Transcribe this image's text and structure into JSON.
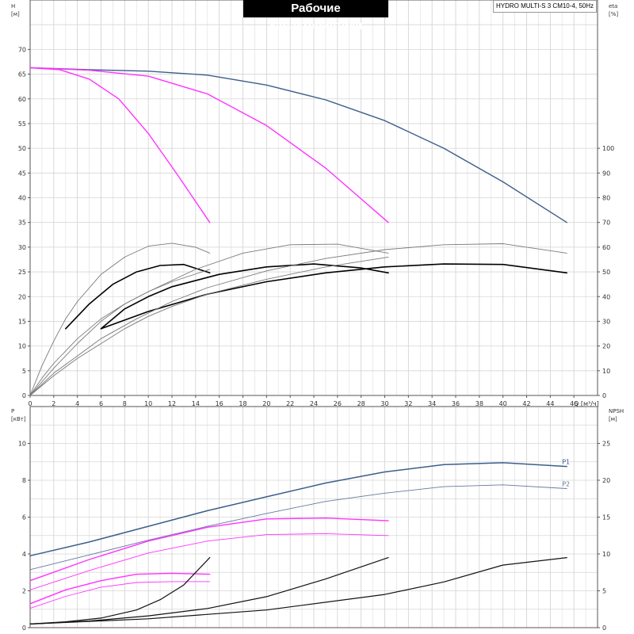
{
  "header": {
    "title": "Рабочие характеристики",
    "model": "HYDRO MULTI-S 3 CM10-4, 50Hz"
  },
  "chart_data": [
    {
      "type": "line",
      "panel": "top",
      "xlabel": "Q [м³/ч]",
      "ylabel_left": "H\n[м]",
      "ylabel_right": "eta\n[%]",
      "xlim": [
        0,
        48
      ],
      "ylim_left": [
        0,
        80
      ],
      "ylim_right": [
        0,
        160
      ],
      "xticks": [
        0,
        2,
        4,
        6,
        8,
        10,
        12,
        14,
        16,
        18,
        20,
        22,
        24,
        26,
        28,
        30,
        32,
        34,
        36,
        38,
        40,
        42,
        44,
        46
      ],
      "yticks_left": [
        0,
        5,
        10,
        15,
        20,
        25,
        30,
        35,
        40,
        45,
        50,
        55,
        60,
        65,
        70
      ],
      "yticks_right": [
        0,
        10,
        20,
        30,
        40,
        50,
        60,
        70,
        80,
        90,
        100
      ],
      "grid": true,
      "series": [
        {
          "kind": "H",
          "axis": "left",
          "color": "#3b5e8a",
          "width": 1.4,
          "x": [
            0,
            5,
            10,
            15,
            20,
            25,
            30,
            35,
            40,
            45.4
          ],
          "y": [
            66.3,
            65.9,
            65.6,
            64.8,
            62.8,
            59.8,
            55.6,
            50.0,
            43.2,
            35.0
          ]
        },
        {
          "kind": "H",
          "axis": "left",
          "color": "#ff33ff",
          "width": 1.4,
          "x": [
            0,
            5,
            10,
            15,
            20,
            25,
            30.3
          ],
          "y": [
            66.3,
            65.8,
            64.6,
            61.0,
            54.6,
            46.0,
            35.0
          ]
        },
        {
          "kind": "H",
          "axis": "left",
          "color": "#ff33ff",
          "width": 1.4,
          "x": [
            0,
            2.5,
            5,
            7.5,
            10,
            12.5,
            15.2
          ],
          "y": [
            66.3,
            65.9,
            64.0,
            60.0,
            53.0,
            44.5,
            35.0
          ]
        },
        {
          "kind": "eta_total",
          "axis": "left",
          "color": "#000000",
          "width": 1.6,
          "x": [
            6,
            10,
            15,
            20,
            25,
            30,
            35,
            40,
            45.4
          ],
          "y": [
            13.5,
            17.0,
            20.5,
            23.0,
            24.8,
            26.0,
            26.6,
            26.5,
            24.8
          ]
        },
        {
          "kind": "eta_total",
          "axis": "left",
          "color": "#000000",
          "width": 1.6,
          "x": [
            6,
            8,
            10,
            12,
            16,
            20,
            24,
            28,
            30.3
          ],
          "y": [
            13.5,
            17.5,
            20.0,
            22.0,
            24.5,
            26.0,
            26.6,
            25.8,
            24.8
          ]
        },
        {
          "kind": "eta_total",
          "axis": "left",
          "color": "#000000",
          "width": 1.6,
          "x": [
            3,
            5,
            7,
            9,
            11,
            13,
            15.2
          ],
          "y": [
            13.5,
            18.5,
            22.5,
            25.0,
            26.3,
            26.5,
            24.8
          ]
        },
        {
          "kind": "eta_pump",
          "axis": "left",
          "color": "#7a7a7a",
          "width": 0.9,
          "x": [
            0,
            2,
            4,
            6,
            9,
            12,
            15,
            20,
            25,
            30,
            35,
            40,
            45.4
          ],
          "y": [
            0,
            4.5,
            8.0,
            11.5,
            15.5,
            19.0,
            21.8,
            25.2,
            27.7,
            29.5,
            30.5,
            30.7,
            28.8
          ]
        },
        {
          "kind": "eta_pump",
          "axis": "left",
          "color": "#7a7a7a",
          "width": 0.9,
          "x": [
            0,
            2,
            4,
            6,
            8,
            10,
            14,
            18,
            22,
            26,
            30.3
          ],
          "y": [
            0,
            5.5,
            10.5,
            15.0,
            18.5,
            21.0,
            25.5,
            28.8,
            30.5,
            30.6,
            28.8
          ]
        },
        {
          "kind": "eta_pump",
          "axis": "left",
          "color": "#7a7a7a",
          "width": 0.9,
          "x": [
            0,
            1,
            2,
            3,
            4,
            6,
            8,
            10,
            12,
            14,
            15.2
          ],
          "y": [
            0,
            6.0,
            11.0,
            15.5,
            19.0,
            24.5,
            28.0,
            30.2,
            30.8,
            30.0,
            28.8
          ]
        },
        {
          "kind": "eta_pump",
          "axis": "left",
          "color": "#7a7a7a",
          "width": 0.9,
          "x": [
            0,
            2,
            4,
            6,
            8,
            10,
            12,
            15,
            20,
            25,
            30.3
          ],
          "y": [
            0,
            4.0,
            7.5,
            10.5,
            13.5,
            16.0,
            18.0,
            20.5,
            23.5,
            26.0,
            28.0
          ]
        },
        {
          "kind": "eta_pump",
          "axis": "left",
          "color": "#7a7a7a",
          "width": 0.9,
          "x": [
            0,
            1,
            2,
            3,
            4,
            6,
            8,
            10,
            12,
            15.2
          ],
          "y": [
            0,
            3.5,
            6.5,
            9.0,
            11.5,
            15.5,
            18.5,
            21.0,
            23.0,
            25.5
          ]
        }
      ]
    },
    {
      "type": "line",
      "panel": "bottom",
      "ylabel_left": "P\n[кВт]",
      "ylabel_right": "NPSH\n[м]",
      "xlim": [
        0,
        48
      ],
      "ylim_left": [
        0,
        12
      ],
      "ylim_right": [
        0,
        30
      ],
      "yticks_left": [
        0,
        2,
        4,
        6,
        8,
        10
      ],
      "yticks_right": [
        0,
        5,
        10,
        15,
        20,
        25
      ],
      "grid": true,
      "series": [
        {
          "name": "P1",
          "kind": "P",
          "axis": "left",
          "color": "#3b5e8a",
          "width": 1.5,
          "x": [
            0,
            5,
            10,
            15,
            20,
            25,
            30,
            35,
            40,
            45.4
          ],
          "y": [
            3.9,
            4.65,
            5.5,
            6.35,
            7.1,
            7.85,
            8.45,
            8.85,
            8.95,
            8.75
          ]
        },
        {
          "name": "P2",
          "kind": "P",
          "axis": "left",
          "color": "#6678a0",
          "width": 0.9,
          "x": [
            0,
            5,
            10,
            15,
            20,
            25,
            30,
            35,
            40,
            45.4
          ],
          "y": [
            3.15,
            3.95,
            4.75,
            5.5,
            6.2,
            6.85,
            7.3,
            7.65,
            7.75,
            7.55
          ]
        },
        {
          "kind": "P",
          "axis": "left",
          "color": "#ff33ff",
          "width": 1.4,
          "x": [
            0,
            5,
            10,
            15,
            20,
            25,
            30.3
          ],
          "y": [
            2.55,
            3.7,
            4.7,
            5.45,
            5.9,
            5.95,
            5.8
          ]
        },
        {
          "kind": "P",
          "axis": "left",
          "color": "#ff33ff",
          "width": 0.9,
          "x": [
            0,
            5,
            10,
            15,
            20,
            25,
            30.3
          ],
          "y": [
            2.05,
            3.1,
            4.05,
            4.7,
            5.05,
            5.1,
            5.0
          ]
        },
        {
          "kind": "P",
          "axis": "left",
          "color": "#ff33ff",
          "width": 1.4,
          "x": [
            0,
            3,
            6,
            9,
            12,
            15.2
          ],
          "y": [
            1.3,
            2.05,
            2.55,
            2.9,
            2.95,
            2.9
          ]
        },
        {
          "kind": "P",
          "axis": "left",
          "color": "#ff33ff",
          "width": 0.9,
          "x": [
            0,
            3,
            6,
            9,
            12,
            15.2
          ],
          "y": [
            1.05,
            1.7,
            2.2,
            2.45,
            2.5,
            2.5
          ]
        },
        {
          "kind": "NPSH",
          "axis": "right",
          "color": "#111111",
          "width": 1.2,
          "x": [
            0,
            10,
            20,
            30,
            35,
            40,
            45.4
          ],
          "y": [
            0.5,
            1.2,
            2.4,
            4.5,
            6.2,
            8.5,
            9.5
          ]
        },
        {
          "kind": "NPSH",
          "axis": "right",
          "color": "#111111",
          "width": 1.2,
          "x": [
            0,
            5,
            10,
            15,
            20,
            25,
            30.3
          ],
          "y": [
            0.5,
            0.9,
            1.6,
            2.6,
            4.2,
            6.6,
            9.5
          ]
        },
        {
          "kind": "NPSH",
          "axis": "right",
          "color": "#111111",
          "width": 1.2,
          "x": [
            0,
            3,
            6,
            9,
            11,
            13,
            15.2
          ],
          "y": [
            0.5,
            0.8,
            1.3,
            2.4,
            3.8,
            5.8,
            9.5
          ]
        }
      ]
    }
  ]
}
